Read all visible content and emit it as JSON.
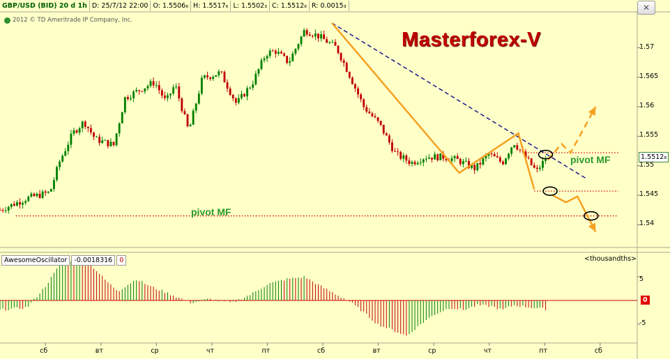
{
  "header": {
    "symbol": "GBP/USD (BID) 20 d 1h",
    "date": "D: 25/7/12 22:00",
    "open": "O: 1.5506₈",
    "high": "H: 1.5517₆",
    "low": "L: 1.5502₃",
    "close": "C: 1.5512₈",
    "range": "R: 0.0015₃"
  },
  "copyright": "2012 © TD Ameritrade IP Company, Inc.",
  "close_icon": "close-icon",
  "watermark": "Masterforex-V",
  "pivot_labels": [
    "pivot MF",
    "pivot MF"
  ],
  "price_tag": "1.5512₈",
  "oscillator": {
    "name": "AwesomeOscillator",
    "value": "-0.0018316",
    "flag": "0",
    "units": "<thousandths>",
    "zero_tag": "0",
    "yticks": [
      "5",
      "0",
      "-5"
    ]
  },
  "colors": {
    "background": "#ffffc8",
    "bull_candle": "#008000",
    "bear_candle": "#c00000",
    "trendline": "#1a1a8c",
    "pattern": "#f5a020",
    "level": "#cc0000",
    "watermark": "#c00000",
    "pivot_text": "#2a9a2a"
  },
  "chart_data": {
    "type": "candlestick",
    "y_ticks": [
      "1.57",
      "1.565",
      "1.56",
      "1.555",
      "1.55",
      "1.545",
      "1.54"
    ],
    "x_ticks": [
      "сб",
      "вт",
      "ср",
      "чт",
      "пт",
      "сб",
      "вт",
      "ср",
      "чт",
      "пт",
      "сб"
    ],
    "ylim": [
      1.5365,
      1.5755
    ],
    "price_path": [
      [
        0,
        1.5425
      ],
      [
        0.6,
        1.5445
      ],
      [
        1.1,
        1.5455
      ],
      [
        1.3,
        1.5505
      ],
      [
        1.6,
        1.5555
      ],
      [
        1.85,
        1.5575
      ],
      [
        2.1,
        1.5545
      ],
      [
        2.5,
        1.5535
      ],
      [
        2.75,
        1.5615
      ],
      [
        3.1,
        1.563
      ],
      [
        3.4,
        1.5642
      ],
      [
        3.65,
        1.5608
      ],
      [
        3.85,
        1.5638
      ],
      [
        4.15,
        1.5558
      ],
      [
        4.45,
        1.5648
      ],
      [
        4.85,
        1.5658
      ],
      [
        5.2,
        1.5605
      ],
      [
        5.55,
        1.564
      ],
      [
        5.85,
        1.569
      ],
      [
        6.05,
        1.5695
      ],
      [
        6.35,
        1.5675
      ],
      [
        6.7,
        1.573
      ],
      [
        7.0,
        1.572
      ],
      [
        7.4,
        1.57
      ],
      [
        7.65,
        1.566
      ],
      [
        8.0,
        1.56
      ],
      [
        8.35,
        1.557
      ],
      [
        8.7,
        1.552
      ],
      [
        9.05,
        1.5505
      ],
      [
        9.35,
        1.5515
      ],
      [
        9.75,
        1.5515
      ],
      [
        10.05,
        1.551
      ],
      [
        10.45,
        1.5495
      ],
      [
        10.75,
        1.552
      ],
      [
        11.05,
        1.5505
      ],
      [
        11.3,
        1.554
      ],
      [
        11.55,
        1.5515
      ],
      [
        11.8,
        1.549
      ],
      [
        12.0,
        1.5512
      ]
    ],
    "trendline": {
      "from": [
        7.3,
        1.5742
      ],
      "to": [
        12.9,
        1.5478
      ]
    },
    "orange_pattern": [
      [
        7.3,
        1.5742
      ],
      [
        10.1,
        1.5488
      ],
      [
        11.4,
        1.5555
      ],
      [
        11.75,
        1.546
      ]
    ],
    "forecast_up": [
      [
        12.05,
        1.551
      ],
      [
        12.35,
        1.5537
      ],
      [
        12.55,
        1.5522
      ],
      [
        13.1,
        1.56
      ]
    ],
    "forecast_down": [
      [
        12.15,
        1.545
      ],
      [
        12.45,
        1.5438
      ],
      [
        12.7,
        1.5448
      ],
      [
        13.1,
        1.5388
      ]
    ],
    "levels": [
      {
        "price": 1.5522,
        "x_from": 11.55,
        "x_to": 13.6
      },
      {
        "price": 1.5457,
        "x_from": 11.75,
        "x_to": 13.6
      },
      {
        "price": 1.5415,
        "x_from": 0.35,
        "x_to": 13.6
      }
    ],
    "ellipses": [
      [
        12.0,
        1.5519
      ],
      [
        12.1,
        1.5457
      ],
      [
        13.0,
        1.5415
      ]
    ],
    "oscillator_values": [
      [
        0,
        -2
      ],
      [
        0.6,
        -1.5
      ],
      [
        1.0,
        3
      ],
      [
        1.35,
        8
      ],
      [
        1.9,
        8.5
      ],
      [
        2.35,
        4
      ],
      [
        2.6,
        2
      ],
      [
        3.0,
        4.5
      ],
      [
        3.3,
        3
      ],
      [
        3.7,
        1.5
      ],
      [
        4.2,
        -0.5
      ],
      [
        4.6,
        0.3
      ],
      [
        5.1,
        -0.5
      ],
      [
        5.5,
        1.2
      ],
      [
        5.9,
        3.5
      ],
      [
        6.3,
        4.5
      ],
      [
        6.7,
        5
      ],
      [
        7.05,
        3
      ],
      [
        7.35,
        1.5
      ],
      [
        7.7,
        -0.3
      ],
      [
        8.0,
        -2.5
      ],
      [
        8.3,
        -5
      ],
      [
        8.7,
        -6.5
      ],
      [
        8.95,
        -7.5
      ],
      [
        9.25,
        -5
      ],
      [
        9.55,
        -3
      ],
      [
        9.9,
        -1.5
      ],
      [
        10.2,
        -2
      ],
      [
        10.5,
        -1
      ],
      [
        10.8,
        -1.2
      ],
      [
        11.05,
        -2
      ],
      [
        11.3,
        -1
      ],
      [
        11.6,
        -1.4
      ],
      [
        12.0,
        -1.8
      ]
    ]
  }
}
